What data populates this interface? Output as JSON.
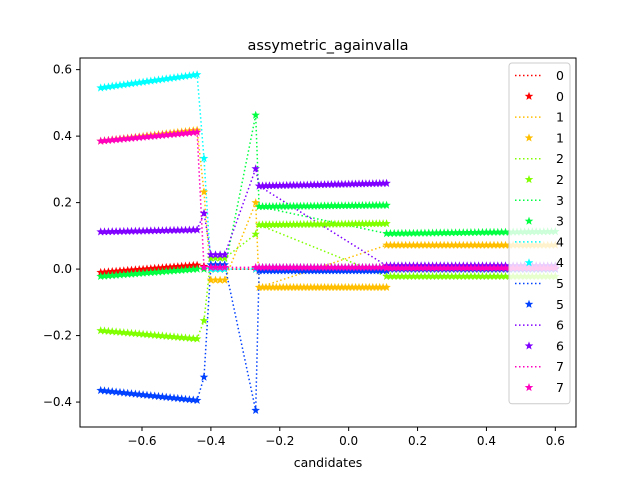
{
  "chart_data": {
    "type": "line",
    "title": "assymetric_againvalla",
    "xlabel": "candidates",
    "ylabel": "",
    "xlim": [
      -0.78,
      0.66
    ],
    "ylim": [
      -0.475,
      0.635
    ],
    "xticks": [
      -0.6,
      -0.4,
      -0.2,
      0.0,
      0.2,
      0.4,
      0.6
    ],
    "xtick_labels": [
      "−0.6",
      "−0.4",
      "−0.2",
      "0.0",
      "0.2",
      "0.4",
      "0.6"
    ],
    "yticks": [
      -0.4,
      -0.2,
      0.0,
      0.2,
      0.4,
      0.6
    ],
    "ytick_labels": [
      "−0.4",
      "−0.2",
      "0.0",
      "0.2",
      "0.4",
      "0.6"
    ],
    "grid": false,
    "legend": {
      "location": "upper right",
      "entries": [
        {
          "label": "0",
          "style": "dotted-line",
          "color": "#ff0000"
        },
        {
          "label": "0",
          "style": "star-marker",
          "color": "#ff0000"
        },
        {
          "label": "1",
          "style": "dotted-line",
          "color": "#ffbf00"
        },
        {
          "label": "1",
          "style": "star-marker",
          "color": "#ffbf00"
        },
        {
          "label": "2",
          "style": "dotted-line",
          "color": "#80ff00"
        },
        {
          "label": "2",
          "style": "star-marker",
          "color": "#80ff00"
        },
        {
          "label": "3",
          "style": "dotted-line",
          "color": "#00ff40"
        },
        {
          "label": "3",
          "style": "star-marker",
          "color": "#00ff40"
        },
        {
          "label": "4",
          "style": "dotted-line",
          "color": "#00ffff"
        },
        {
          "label": "4",
          "style": "star-marker",
          "color": "#00ffff"
        },
        {
          "label": "5",
          "style": "dotted-line",
          "color": "#0040ff"
        },
        {
          "label": "5",
          "style": "star-marker",
          "color": "#0040ff"
        },
        {
          "label": "6",
          "style": "dotted-line",
          "color": "#8000ff"
        },
        {
          "label": "6",
          "style": "star-marker",
          "color": "#8000ff"
        },
        {
          "label": "7",
          "style": "dotted-line",
          "color": "#ff00bf"
        },
        {
          "label": "7",
          "style": "star-marker",
          "color": "#ff00bf"
        }
      ]
    },
    "series": [
      {
        "name": "0",
        "color": "#ff0000",
        "segments": [
          {
            "x": [
              -0.72,
              -0.44
            ],
            "y": [
              -0.01,
              0.012
            ]
          },
          {
            "x": [
              -0.42,
              -0.42
            ],
            "y": [
              0.008,
              0.008
            ]
          },
          {
            "x": [
              -0.4,
              -0.36
            ],
            "y": [
              0.0,
              0.0
            ]
          },
          {
            "x": [
              -0.27,
              -0.27
            ],
            "y": [
              0.0,
              0.0
            ]
          },
          {
            "x": [
              -0.26,
              0.11
            ],
            "y": [
              0.0,
              0.0
            ]
          },
          {
            "x": [
              0.11,
              0.6
            ],
            "y": [
              0.0,
              0.0
            ]
          }
        ],
        "line": {
          "x": [
            -0.72,
            -0.44,
            -0.42,
            -0.4,
            -0.36,
            -0.27,
            -0.26,
            0.11,
            0.6
          ],
          "y": [
            -0.01,
            0.012,
            0.008,
            0.0,
            0.0,
            0.0,
            0.0,
            0.0,
            0.0
          ]
        }
      },
      {
        "name": "1",
        "color": "#ffbf00",
        "segments": [
          {
            "x": [
              -0.72,
              -0.44
            ],
            "y": [
              0.385,
              0.418
            ]
          },
          {
            "x": [
              -0.42,
              -0.42
            ],
            "y": [
              0.232,
              0.232
            ]
          },
          {
            "x": [
              -0.4,
              -0.36
            ],
            "y": [
              -0.033,
              -0.033
            ]
          },
          {
            "x": [
              -0.27,
              -0.27
            ],
            "y": [
              0.2,
              0.2
            ]
          },
          {
            "x": [
              -0.26,
              0.11
            ],
            "y": [
              -0.055,
              -0.055
            ]
          },
          {
            "x": [
              0.11,
              0.6
            ],
            "y": [
              0.072,
              0.072
            ]
          }
        ],
        "line": {
          "x": [
            -0.72,
            -0.44,
            -0.42,
            -0.4,
            -0.36,
            -0.27,
            -0.26,
            0.11,
            0.6
          ],
          "y": [
            0.385,
            0.418,
            0.232,
            -0.033,
            -0.033,
            0.2,
            -0.055,
            0.072,
            0.072
          ]
        }
      },
      {
        "name": "2",
        "color": "#80ff00",
        "segments": [
          {
            "x": [
              -0.72,
              -0.44
            ],
            "y": [
              -0.185,
              -0.21
            ]
          },
          {
            "x": [
              -0.42,
              -0.42
            ],
            "y": [
              -0.155,
              -0.155
            ]
          },
          {
            "x": [
              -0.4,
              -0.36
            ],
            "y": [
              0.033,
              0.033
            ]
          },
          {
            "x": [
              -0.27,
              -0.27
            ],
            "y": [
              0.105,
              0.105
            ]
          },
          {
            "x": [
              -0.26,
              0.11
            ],
            "y": [
              0.133,
              0.137
            ]
          },
          {
            "x": [
              0.11,
              0.6
            ],
            "y": [
              -0.022,
              -0.022
            ]
          }
        ],
        "line": {
          "x": [
            -0.72,
            -0.44,
            -0.42,
            -0.4,
            -0.36,
            -0.27,
            -0.26,
            0.11,
            0.6
          ],
          "y": [
            -0.185,
            -0.21,
            -0.155,
            0.033,
            0.033,
            0.105,
            0.133,
            -0.022,
            -0.022
          ]
        }
      },
      {
        "name": "3",
        "color": "#00ff40",
        "segments": [
          {
            "x": [
              -0.72,
              -0.44
            ],
            "y": [
              -0.022,
              0.0
            ]
          },
          {
            "x": [
              -0.42,
              -0.42
            ],
            "y": [
              0.0,
              0.0
            ]
          },
          {
            "x": [
              -0.4,
              -0.36
            ],
            "y": [
              0.0,
              0.0
            ]
          },
          {
            "x": [
              -0.27,
              -0.27
            ],
            "y": [
              0.463,
              0.463
            ]
          },
          {
            "x": [
              -0.26,
              0.11
            ],
            "y": [
              0.188,
              0.192
            ]
          },
          {
            "x": [
              0.11,
              0.6
            ],
            "y": [
              0.107,
              0.113
            ]
          }
        ],
        "line": {
          "x": [
            -0.72,
            -0.44,
            -0.42,
            -0.4,
            -0.36,
            -0.27,
            -0.26,
            0.11,
            0.6
          ],
          "y": [
            -0.022,
            0.0,
            0.0,
            0.0,
            0.0,
            0.463,
            0.188,
            0.107,
            0.113
          ]
        }
      },
      {
        "name": "4",
        "color": "#00ffff",
        "segments": [
          {
            "x": [
              -0.72,
              -0.44
            ],
            "y": [
              0.545,
              0.585
            ]
          },
          {
            "x": [
              -0.42,
              -0.42
            ],
            "y": [
              0.333,
              0.333
            ]
          },
          {
            "x": [
              -0.4,
              -0.36
            ],
            "y": [
              0.0,
              0.0
            ]
          },
          {
            "x": [
              -0.27,
              -0.27
            ],
            "y": [
              0.0,
              0.0
            ]
          },
          {
            "x": [
              -0.26,
              0.11
            ],
            "y": [
              0.005,
              0.005
            ]
          },
          {
            "x": [
              0.11,
              0.6
            ],
            "y": [
              0.0,
              0.0
            ]
          }
        ],
        "line": {
          "x": [
            -0.72,
            -0.44,
            -0.42,
            -0.4,
            -0.36,
            -0.27,
            -0.26,
            0.11,
            0.6
          ],
          "y": [
            0.545,
            0.585,
            0.333,
            0.0,
            0.0,
            0.0,
            0.005,
            0.0,
            0.0
          ]
        }
      },
      {
        "name": "5",
        "color": "#0040ff",
        "segments": [
          {
            "x": [
              -0.72,
              -0.44
            ],
            "y": [
              -0.365,
              -0.395
            ]
          },
          {
            "x": [
              -0.42,
              -0.42
            ],
            "y": [
              -0.325,
              -0.325
            ]
          },
          {
            "x": [
              -0.4,
              -0.36
            ],
            "y": [
              0.013,
              0.013
            ]
          },
          {
            "x": [
              -0.27,
              -0.27
            ],
            "y": [
              -0.425,
              -0.425
            ]
          },
          {
            "x": [
              -0.26,
              0.11
            ],
            "y": [
              -0.005,
              -0.005
            ]
          },
          {
            "x": [
              0.11,
              0.6
            ],
            "y": [
              0.0,
              0.0
            ]
          }
        ],
        "line": {
          "x": [
            -0.72,
            -0.44,
            -0.42,
            -0.4,
            -0.36,
            -0.27,
            -0.26,
            0.11,
            0.6
          ],
          "y": [
            -0.365,
            -0.395,
            -0.325,
            0.013,
            0.013,
            -0.425,
            -0.005,
            0.0,
            0.0
          ]
        }
      },
      {
        "name": "6",
        "color": "#8000ff",
        "segments": [
          {
            "x": [
              -0.72,
              -0.44
            ],
            "y": [
              0.112,
              0.118
            ]
          },
          {
            "x": [
              -0.42,
              -0.42
            ],
            "y": [
              0.168,
              0.168
            ]
          },
          {
            "x": [
              -0.4,
              -0.36
            ],
            "y": [
              0.043,
              0.043
            ]
          },
          {
            "x": [
              -0.27,
              -0.27
            ],
            "y": [
              0.302,
              0.302
            ]
          },
          {
            "x": [
              -0.26,
              0.11
            ],
            "y": [
              0.25,
              0.258
            ]
          },
          {
            "x": [
              0.11,
              0.6
            ],
            "y": [
              0.01,
              0.01
            ]
          }
        ],
        "line": {
          "x": [
            -0.72,
            -0.44,
            -0.42,
            -0.4,
            -0.36,
            -0.27,
            -0.26,
            0.11,
            0.6
          ],
          "y": [
            0.112,
            0.118,
            0.168,
            0.043,
            0.043,
            0.302,
            0.25,
            0.01,
            0.01
          ]
        }
      },
      {
        "name": "7",
        "color": "#ff00bf",
        "segments": [
          {
            "x": [
              -0.72,
              -0.44
            ],
            "y": [
              0.385,
              0.412
            ]
          },
          {
            "x": [
              -0.42,
              -0.42
            ],
            "y": [
              0.005,
              0.005
            ]
          },
          {
            "x": [
              -0.4,
              -0.36
            ],
            "y": [
              0.005,
              0.005
            ]
          },
          {
            "x": [
              -0.27,
              -0.27
            ],
            "y": [
              0.005,
              0.005
            ]
          },
          {
            "x": [
              -0.26,
              0.11
            ],
            "y": [
              0.005,
              0.005
            ]
          },
          {
            "x": [
              0.11,
              0.6
            ],
            "y": [
              0.003,
              0.003
            ]
          }
        ],
        "line": {
          "x": [
            -0.72,
            -0.44,
            -0.42,
            -0.4,
            -0.36,
            -0.27,
            -0.26,
            0.11,
            0.6
          ],
          "y": [
            0.385,
            0.412,
            0.005,
            0.005,
            0.005,
            0.005,
            0.005,
            0.003,
            0.003
          ]
        }
      }
    ]
  }
}
